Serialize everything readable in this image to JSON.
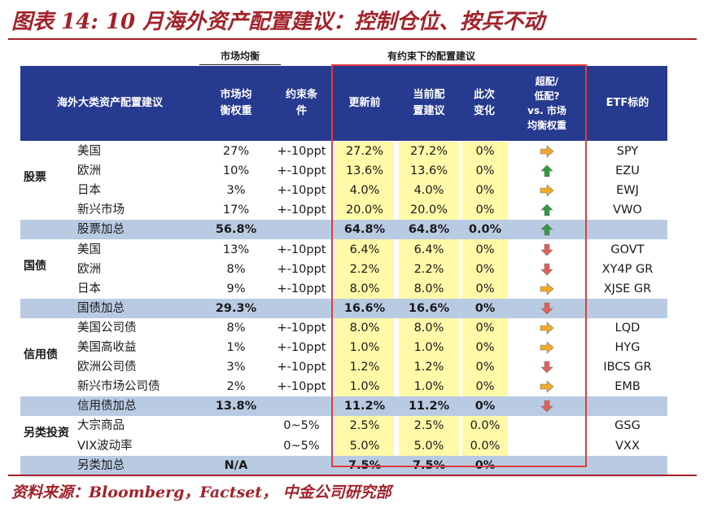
{
  "title": "图表 14: 10 月海外资产配置建议：控制仓位、按兵不动",
  "source": "资料来源：Bloomberg，Factset， 中金公司研究部",
  "group_labels": {
    "market": "市场均衡",
    "constrained": "有约束下的配置建议"
  },
  "headers": {
    "asset": "海外大类资产配置建议",
    "weight": "市场均\n衡权重",
    "constraint": "约束条\n件",
    "before": "更新前",
    "current": "当前配\n置建议",
    "change": "此次\n变化",
    "signal": "超配/\n低配?\nvs. 市场\n均衡权重",
    "etf": "ETF标的"
  },
  "categories": {
    "equity": "股票",
    "govt": "国债",
    "credit": "信用债",
    "alt": "另类投资"
  },
  "colors": {
    "up": "#2e9a3c",
    "down": "#e0605a",
    "right": "#f4a92a",
    "header": "#263a8f",
    "accent": "#a3222a"
  },
  "rows": [
    {
      "name": "美国",
      "weight": "27%",
      "constraint": "+-10ppt",
      "before": "27.2%",
      "current": "27.2%",
      "change": "0%",
      "signal": "right",
      "etf": "SPY",
      "sub": false
    },
    {
      "name": "欧洲",
      "weight": "10%",
      "constraint": "+-10ppt",
      "before": "13.6%",
      "current": "13.6%",
      "change": "0%",
      "signal": "up",
      "etf": "EZU",
      "sub": false
    },
    {
      "name": "日本",
      "weight": "3%",
      "constraint": "+-10ppt",
      "before": "4.0%",
      "current": "4.0%",
      "change": "0%",
      "signal": "right",
      "etf": "EWJ",
      "sub": false
    },
    {
      "name": "新兴市场",
      "weight": "17%",
      "constraint": "+-10ppt",
      "before": "20.0%",
      "current": "20.0%",
      "change": "0%",
      "signal": "up",
      "etf": "VWO",
      "sub": false
    },
    {
      "name": "股票加总",
      "weight": "56.8%",
      "constraint": "",
      "before": "64.8%",
      "current": "64.8%",
      "change": "0.0%",
      "signal": "up",
      "etf": "",
      "sub": true
    },
    {
      "name": "美国",
      "weight": "13%",
      "constraint": "+-10ppt",
      "before": "6.4%",
      "current": "6.4%",
      "change": "0%",
      "signal": "down",
      "etf": "GOVT",
      "sub": false
    },
    {
      "name": "欧洲",
      "weight": "8%",
      "constraint": "+-10ppt",
      "before": "2.2%",
      "current": "2.2%",
      "change": "0%",
      "signal": "down",
      "etf": "XY4P GR",
      "sub": false
    },
    {
      "name": "日本",
      "weight": "9%",
      "constraint": "+-10ppt",
      "before": "8.0%",
      "current": "8.0%",
      "change": "0%",
      "signal": "right",
      "etf": "XJSE GR",
      "sub": false
    },
    {
      "name": "国债加总",
      "weight": "29.3%",
      "constraint": "",
      "before": "16.6%",
      "current": "16.6%",
      "change": "0%",
      "signal": "down",
      "etf": "",
      "sub": true
    },
    {
      "name": "美国公司债",
      "weight": "8%",
      "constraint": "+-10ppt",
      "before": "8.0%",
      "current": "8.0%",
      "change": "0%",
      "signal": "right",
      "etf": "LQD",
      "sub": false
    },
    {
      "name": "美国高收益",
      "weight": "1%",
      "constraint": "+-10ppt",
      "before": "1.0%",
      "current": "1.0%",
      "change": "0%",
      "signal": "right",
      "etf": "HYG",
      "sub": false
    },
    {
      "name": "欧洲公司债",
      "weight": "3%",
      "constraint": "+-10ppt",
      "before": "1.2%",
      "current": "1.2%",
      "change": "0%",
      "signal": "down",
      "etf": "IBCS GR",
      "sub": false
    },
    {
      "name": "新兴市场公司债",
      "weight": "2%",
      "constraint": "+-10ppt",
      "before": "1.0%",
      "current": "1.0%",
      "change": "0%",
      "signal": "right",
      "etf": "EMB",
      "sub": false
    },
    {
      "name": "信用债加总",
      "weight": "13.8%",
      "constraint": "",
      "before": "11.2%",
      "current": "11.2%",
      "change": "0%",
      "signal": "down",
      "etf": "",
      "sub": true
    },
    {
      "name": "大宗商品",
      "weight": "",
      "constraint": "0~5%",
      "before": "2.5%",
      "current": "2.5%",
      "change": "0.0%",
      "signal": "",
      "etf": "GSG",
      "sub": false
    },
    {
      "name": "VIX波动率",
      "weight": "",
      "constraint": "0~5%",
      "before": "5.0%",
      "current": "5.0%",
      "change": "0.0%",
      "signal": "",
      "etf": "VXX",
      "sub": false
    },
    {
      "name": "另类加总",
      "weight": "N/A",
      "constraint": "",
      "before": "7.5%",
      "current": "7.5%",
      "change": "0%",
      "signal": "",
      "etf": "",
      "sub": true
    }
  ]
}
